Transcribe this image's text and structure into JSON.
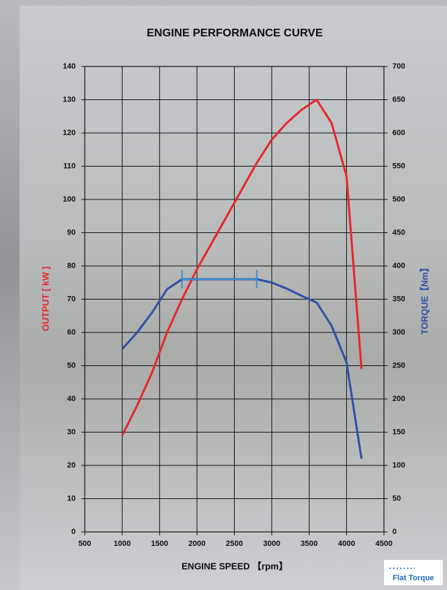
{
  "chart_data": {
    "type": "line",
    "title": "ENGINE PERFORMANCE CURVE",
    "x_label": "ENGINE SPEED 【rpm】",
    "y_label": "OUTPUT [ kW ]",
    "y2_label": "TORQUE【Nm】",
    "x": [
      1000,
      1200,
      1400,
      1600,
      1800,
      2000,
      2200,
      2400,
      2600,
      2800,
      3000,
      3200,
      3400,
      3600,
      3800,
      4000,
      4200
    ],
    "series": [
      {
        "name": "Output",
        "color": "#e8262b",
        "axis": "y",
        "values": [
          29,
          38,
          48,
          60,
          70,
          79,
          87,
          95,
          103,
          111,
          118,
          123,
          127,
          130,
          123,
          107,
          49
        ]
      },
      {
        "name": "Torque",
        "color": "#2f4fa8",
        "axis": "y2",
        "values": [
          275,
          300,
          330,
          365,
          380,
          380,
          380,
          380,
          380,
          380,
          375,
          366,
          355,
          345,
          310,
          255,
          110
        ]
      }
    ],
    "flat_torque": {
      "label": "Flat Torque",
      "color": "#3a8fd0",
      "x": [
        1800,
        2800
      ],
      "value": 380
    },
    "xlim": [
      500,
      4500
    ],
    "xticks": [
      500,
      1000,
      1500,
      2000,
      2500,
      3000,
      3500,
      4000,
      4500
    ],
    "ylim": [
      0,
      140
    ],
    "yticks": [
      0,
      10,
      20,
      30,
      40,
      50,
      60,
      70,
      80,
      90,
      100,
      110,
      120,
      130,
      140
    ],
    "y2lim": [
      0,
      700
    ],
    "y2ticks": [
      0,
      50,
      100,
      150,
      200,
      250,
      300,
      350,
      400,
      450,
      500,
      550,
      600,
      650,
      700
    ],
    "grid": true
  }
}
